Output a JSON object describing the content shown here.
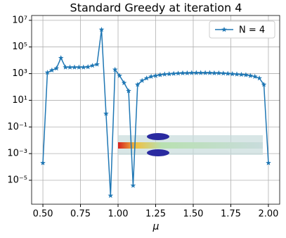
{
  "chart_data": {
    "type": "line",
    "title": "Standard Greedy at iteration 4",
    "xlabel": "μ",
    "x": [
      0.5,
      0.53,
      0.56,
      0.59,
      0.62,
      0.65,
      0.68,
      0.71,
      0.74,
      0.77,
      0.8,
      0.83,
      0.86,
      0.89,
      0.92,
      0.95,
      0.98,
      1.01,
      1.04,
      1.07,
      1.1,
      1.13,
      1.16,
      1.19,
      1.22,
      1.25,
      1.28,
      1.31,
      1.34,
      1.37,
      1.4,
      1.43,
      1.46,
      1.49,
      1.52,
      1.55,
      1.58,
      1.61,
      1.64,
      1.67,
      1.7,
      1.73,
      1.76,
      1.79,
      1.82,
      1.85,
      1.88,
      1.91,
      1.94,
      1.97,
      2.0
    ],
    "series": [
      {
        "name": "N = 4",
        "color": "#1f77b4",
        "values": [
          0.0002,
          1200,
          1800,
          2500,
          15000,
          3000,
          3000,
          3000,
          3000,
          3000,
          3200,
          4000,
          5000,
          2000000,
          1,
          7e-07,
          2000,
          700,
          200,
          50,
          4e-06,
          150,
          300,
          450,
          600,
          700,
          800,
          900,
          950,
          1000,
          1050,
          1100,
          1100,
          1150,
          1150,
          1150,
          1150,
          1150,
          1100,
          1100,
          1050,
          1000,
          950,
          900,
          850,
          800,
          700,
          600,
          450,
          150,
          0.0002
        ]
      }
    ],
    "xlim": [
      0.425,
      2.075
    ],
    "ylim": [
      1.6e-07,
      23000000.0
    ],
    "log_y": true,
    "grid": true,
    "legend": "upper right",
    "xticks": [
      {
        "value": 0.5,
        "label": "0.50"
      },
      {
        "value": 0.75,
        "label": "0.75"
      },
      {
        "value": 1.0,
        "label": "1.00"
      },
      {
        "value": 1.25,
        "label": "1.25"
      },
      {
        "value": 1.5,
        "label": "1.50"
      },
      {
        "value": 1.75,
        "label": "1.75"
      },
      {
        "value": 2.0,
        "label": "2.00"
      }
    ],
    "yticks": [
      {
        "value": 1e-05,
        "label": "10⁻⁵"
      },
      {
        "value": 0.001,
        "label": "10⁻³"
      },
      {
        "value": 0.1,
        "label": "10⁻¹"
      },
      {
        "value": 10,
        "label": "10¹"
      },
      {
        "value": 1000,
        "label": "10³"
      },
      {
        "value": 100000,
        "label": "10⁵"
      },
      {
        "value": 10000000,
        "label": "10⁷"
      }
    ]
  }
}
